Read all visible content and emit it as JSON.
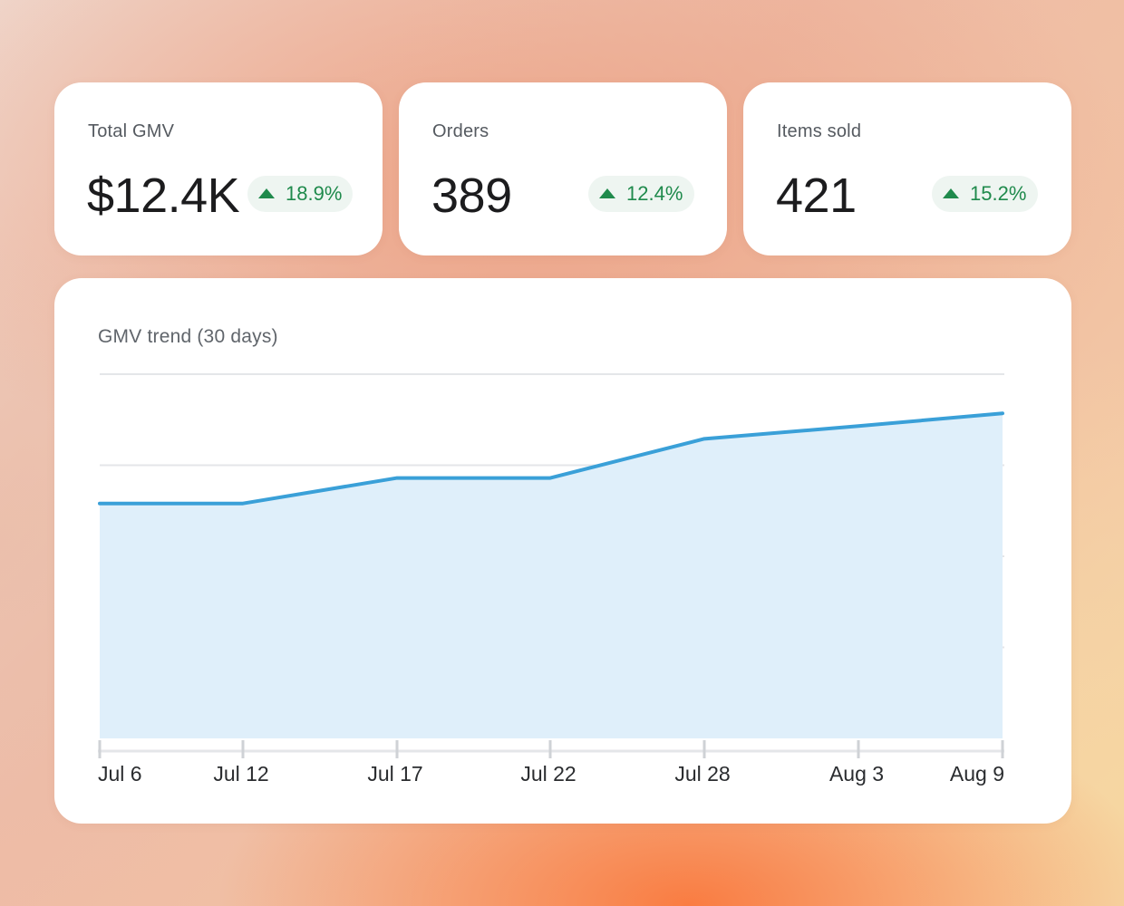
{
  "kpis": [
    {
      "label": "Total GMV",
      "value": "$12.4K",
      "delta": "18.9%"
    },
    {
      "label": "Orders",
      "value": "389",
      "delta": "12.4%"
    },
    {
      "label": "Items sold",
      "value": "421",
      "delta": "15.2%"
    }
  ],
  "chart": {
    "title": "GMV trend (30 days)"
  },
  "colors": {
    "line": "#3aa0d8",
    "area": "#dfeffa",
    "positive": "#1f8a4c",
    "positive_bg": "#eef5f1"
  },
  "icons": {
    "delta": "up-triangle-icon"
  },
  "chart_data": {
    "type": "area",
    "title": "GMV trend (30 days)",
    "xlabel": "",
    "ylabel": "",
    "x": [
      "Jul 6",
      "Jul 12",
      "Jul 17",
      "Jul 22",
      "Jul 28",
      "Aug 3",
      "Aug 9"
    ],
    "series": [
      {
        "values": [
          258,
          258,
          286,
          286,
          329,
          343,
          357
        ]
      }
    ],
    "ylim": [
      0,
      400
    ],
    "grid": true,
    "legend": "none"
  }
}
